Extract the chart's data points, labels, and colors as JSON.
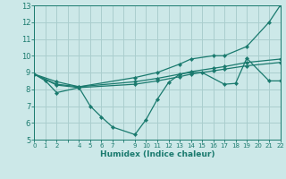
{
  "background_color": "#cce8e8",
  "grid_color": "#aacece",
  "line_color": "#1a7a6e",
  "xlabel": "Humidex (Indice chaleur)",
  "ylim": [
    5,
    13
  ],
  "xlim": [
    0,
    22
  ],
  "yticks": [
    5,
    6,
    7,
    8,
    9,
    10,
    11,
    12,
    13
  ],
  "xticks": [
    0,
    1,
    2,
    3,
    4,
    5,
    6,
    7,
    8,
    9,
    10,
    11,
    12,
    13,
    14,
    15,
    16,
    17,
    18,
    19,
    20,
    21,
    22
  ],
  "xtick_labels": [
    "0",
    "1",
    "2",
    "",
    "4",
    "5",
    "6",
    "7",
    "",
    "9",
    "10",
    "11",
    "12",
    "13",
    "14",
    "15",
    "16",
    "17",
    "18",
    "19",
    "20",
    "21",
    "22"
  ],
  "line1_x": [
    0,
    1,
    2,
    4,
    5,
    6,
    7,
    9,
    10,
    11,
    12,
    13,
    14,
    15,
    17,
    18,
    19,
    21,
    22
  ],
  "line1_y": [
    8.9,
    8.5,
    7.8,
    8.1,
    7.0,
    6.35,
    5.75,
    5.3,
    6.2,
    7.4,
    8.4,
    8.9,
    9.0,
    9.0,
    8.3,
    8.35,
    9.85,
    8.5,
    8.5
  ],
  "line2_x": [
    0,
    2,
    4,
    9,
    11,
    13,
    14,
    16,
    17,
    19,
    21,
    22
  ],
  "line2_y": [
    8.9,
    8.45,
    8.15,
    8.7,
    9.0,
    9.5,
    9.8,
    10.0,
    10.0,
    10.55,
    12.0,
    13.0
  ],
  "line3_x": [
    0,
    2,
    4,
    9,
    11,
    13,
    14,
    16,
    17,
    19,
    22
  ],
  "line3_y": [
    8.9,
    8.3,
    8.15,
    8.45,
    8.65,
    8.9,
    9.05,
    9.25,
    9.35,
    9.6,
    9.8
  ],
  "line4_x": [
    0,
    2,
    4,
    9,
    11,
    13,
    14,
    16,
    17,
    19,
    22
  ],
  "line4_y": [
    8.9,
    8.25,
    8.1,
    8.3,
    8.5,
    8.75,
    8.9,
    9.1,
    9.2,
    9.4,
    9.6
  ]
}
